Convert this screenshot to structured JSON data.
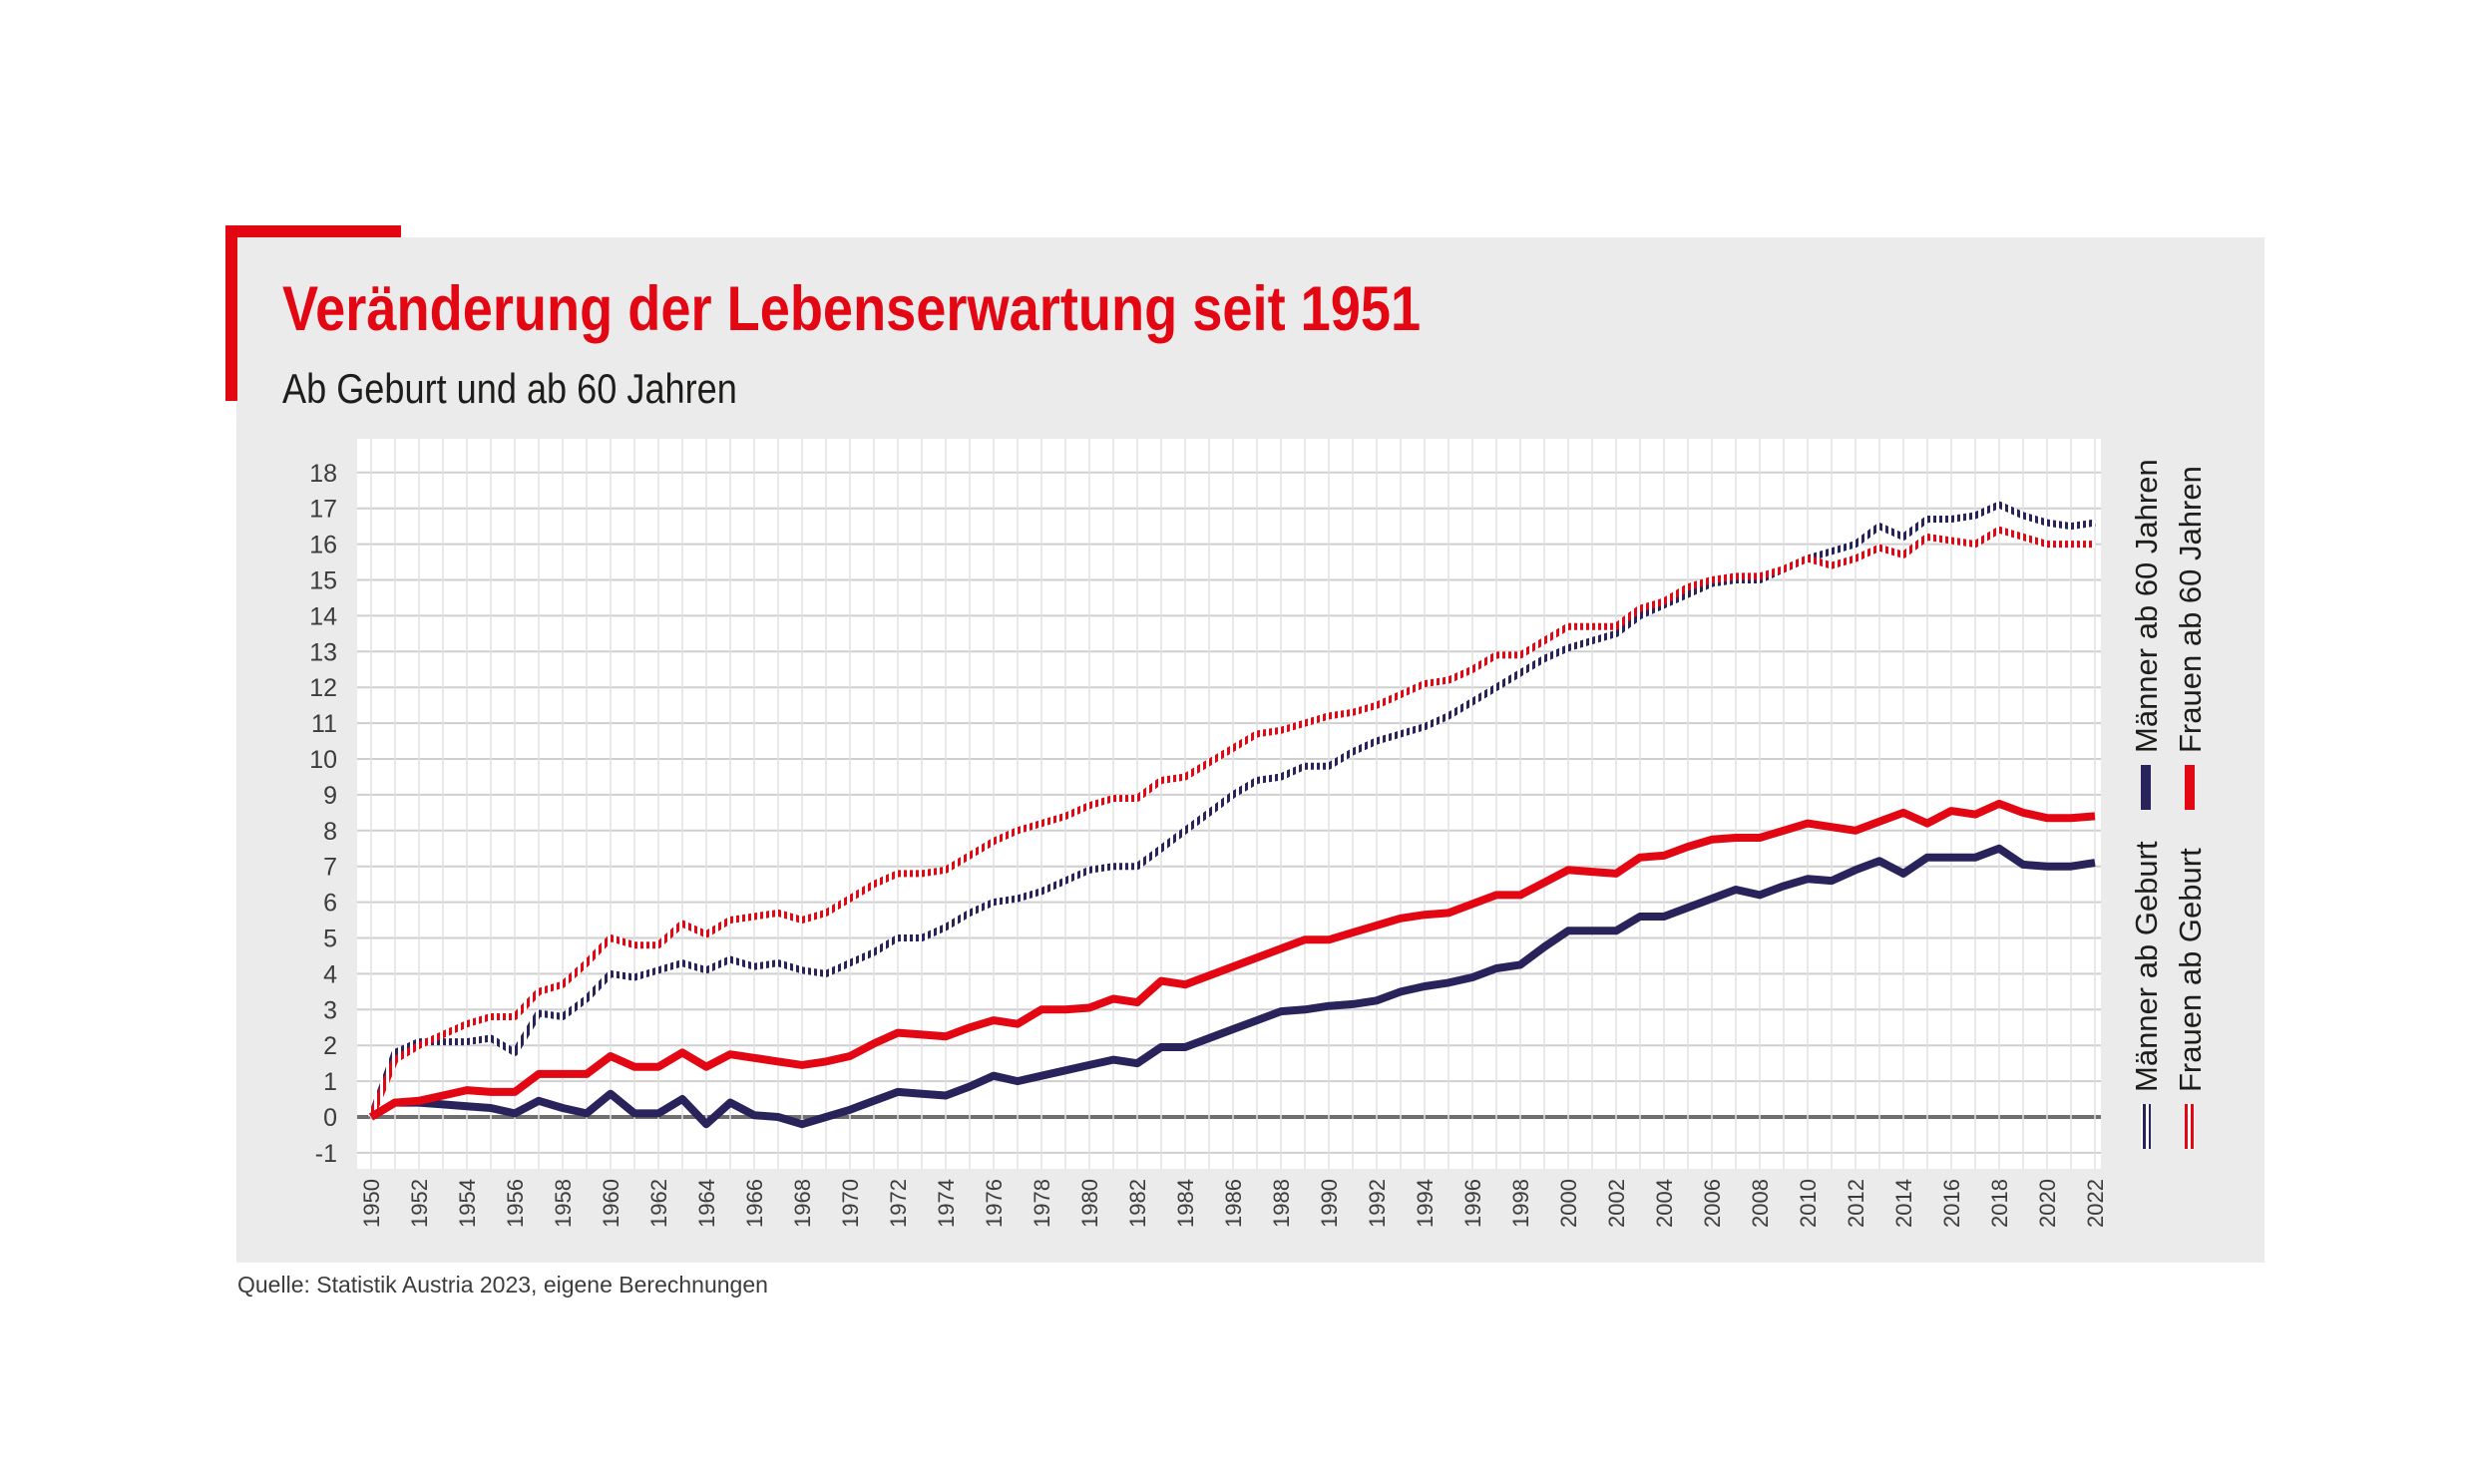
{
  "title": "Veränderung der Lebenserwartung seit 1951",
  "subtitle": "Ab Geburt und ab 60 Jahren",
  "source": "Quelle: Statistik Austria 2023, eigene Berechnungen",
  "colors": {
    "accent": "#e30613",
    "navy": "#29235c",
    "red": "#e30613",
    "panel": "#ebebeb"
  },
  "chart_data": {
    "type": "line",
    "ylim": [
      -1,
      18
    ],
    "y_ticks": [
      "-1",
      "0",
      "1",
      "2",
      "3",
      "4",
      "5",
      "6",
      "7",
      "8",
      "9",
      "10",
      "11",
      "12",
      "13",
      "14",
      "15",
      "16",
      "17",
      "18"
    ],
    "x_ticks": [
      "1950",
      "1952",
      "1954",
      "1956",
      "1958",
      "1960",
      "1962",
      "1964",
      "1966",
      "1968",
      "1970",
      "1972",
      "1974",
      "1976",
      "1978",
      "1980",
      "1982",
      "1984",
      "1986",
      "1988",
      "1990",
      "1992",
      "1994",
      "1996",
      "1998",
      "2000",
      "2002",
      "2004",
      "2006",
      "2008",
      "2010",
      "2012",
      "2014",
      "2016",
      "2018",
      "2020",
      "2022"
    ],
    "xlim": [
      1950,
      2022
    ],
    "grid": true,
    "legend": [
      {
        "name": "Männer ab 60 Jahren",
        "color": "#29235c",
        "style": "solid"
      },
      {
        "name": "Frauen ab 60 Jahren",
        "color": "#e30613",
        "style": "solid"
      },
      {
        "name": "Männer ab Geburt",
        "color": "#29235c",
        "style": "hatched"
      },
      {
        "name": "Frauen ab Geburt",
        "color": "#e30613",
        "style": "hatched"
      }
    ],
    "series": [
      {
        "name": "Männer ab Geburt",
        "color": "#29235c",
        "style": "hatched",
        "x": [
          1950,
          1951,
          1952,
          1953,
          1954,
          1955,
          1956,
          1957,
          1958,
          1959,
          1960,
          1961,
          1962,
          1963,
          1964,
          1965,
          1966,
          1967,
          1968,
          1969,
          1970,
          1971,
          1972,
          1973,
          1974,
          1975,
          1976,
          1977,
          1978,
          1979,
          1980,
          1981,
          1982,
          1983,
          1984,
          1985,
          1986,
          1987,
          1988,
          1989,
          1990,
          1991,
          1992,
          1993,
          1994,
          1995,
          1996,
          1997,
          1998,
          1999,
          2000,
          2001,
          2002,
          2003,
          2004,
          2005,
          2006,
          2007,
          2008,
          2009,
          2010,
          2011,
          2012,
          2013,
          2014,
          2015,
          2016,
          2017,
          2018,
          2019,
          2020,
          2021,
          2022
        ],
        "y": [
          0,
          1.8,
          2.1,
          2.1,
          2.1,
          2.2,
          1.8,
          2.9,
          2.8,
          3.3,
          4.0,
          3.9,
          4.1,
          4.3,
          4.1,
          4.4,
          4.2,
          4.3,
          4.1,
          4.0,
          4.3,
          4.6,
          5.0,
          5.0,
          5.3,
          5.7,
          6.0,
          6.1,
          6.3,
          6.6,
          6.9,
          7.0,
          7.0,
          7.5,
          8.0,
          8.5,
          9.0,
          9.4,
          9.5,
          9.8,
          9.8,
          10.2,
          10.5,
          10.7,
          10.9,
          11.2,
          11.6,
          12.0,
          12.4,
          12.8,
          13.1,
          13.3,
          13.5,
          14.0,
          14.3,
          14.6,
          14.9,
          15.0,
          15.0,
          15.3,
          15.6,
          15.8,
          16.0,
          16.5,
          16.2,
          16.7,
          16.7,
          16.8,
          17.1,
          16.8,
          16.6,
          16.5,
          16.6
        ]
      },
      {
        "name": "Frauen ab Geburt",
        "color": "#e30613",
        "style": "hatched",
        "x": [
          1950,
          1951,
          1952,
          1953,
          1954,
          1955,
          1956,
          1957,
          1958,
          1959,
          1960,
          1961,
          1962,
          1963,
          1964,
          1965,
          1966,
          1967,
          1968,
          1969,
          1970,
          1971,
          1972,
          1973,
          1974,
          1975,
          1976,
          1977,
          1978,
          1979,
          1980,
          1981,
          1982,
          1983,
          1984,
          1985,
          1986,
          1987,
          1988,
          1989,
          1990,
          1991,
          1992,
          1993,
          1994,
          1995,
          1996,
          1997,
          1998,
          1999,
          2000,
          2001,
          2002,
          2003,
          2004,
          2005,
          2006,
          2007,
          2008,
          2009,
          2010,
          2011,
          2012,
          2013,
          2014,
          2015,
          2016,
          2017,
          2018,
          2019,
          2020,
          2021,
          2022
        ],
        "y": [
          0,
          1.6,
          2.0,
          2.3,
          2.6,
          2.8,
          2.8,
          3.5,
          3.7,
          4.3,
          5.0,
          4.8,
          4.8,
          5.4,
          5.1,
          5.5,
          5.6,
          5.7,
          5.5,
          5.7,
          6.1,
          6.5,
          6.8,
          6.8,
          6.9,
          7.3,
          7.7,
          8.0,
          8.2,
          8.4,
          8.7,
          8.9,
          8.9,
          9.4,
          9.5,
          9.9,
          10.3,
          10.7,
          10.8,
          11.0,
          11.2,
          11.3,
          11.5,
          11.8,
          12.1,
          12.2,
          12.5,
          12.9,
          12.9,
          13.3,
          13.7,
          13.7,
          13.7,
          14.2,
          14.4,
          14.8,
          15.0,
          15.1,
          15.1,
          15.3,
          15.6,
          15.4,
          15.6,
          15.9,
          15.7,
          16.2,
          16.1,
          16.0,
          16.4,
          16.2,
          16.0,
          16.0,
          16.0
        ]
      },
      {
        "name": "Männer ab 60 Jahren",
        "color": "#29235c",
        "style": "solid",
        "x": [
          1950,
          1951,
          1952,
          1953,
          1954,
          1955,
          1956,
          1957,
          1958,
          1959,
          1960,
          1961,
          1962,
          1963,
          1964,
          1965,
          1966,
          1967,
          1968,
          1969,
          1970,
          1971,
          1972,
          1973,
          1974,
          1975,
          1976,
          1977,
          1978,
          1979,
          1980,
          1981,
          1982,
          1983,
          1984,
          1985,
          1986,
          1987,
          1988,
          1989,
          1990,
          1991,
          1992,
          1993,
          1994,
          1995,
          1996,
          1997,
          1998,
          1999,
          2000,
          2001,
          2002,
          2003,
          2004,
          2005,
          2006,
          2007,
          2008,
          2009,
          2010,
          2011,
          2012,
          2013,
          2014,
          2015,
          2016,
          2017,
          2018,
          2019,
          2020,
          2021,
          2022
        ],
        "y": [
          0,
          0.4,
          0.4,
          0.35,
          0.3,
          0.25,
          0.1,
          0.45,
          0.25,
          0.1,
          0.65,
          0.1,
          0.1,
          0.5,
          -0.2,
          0.4,
          0.05,
          0.0,
          -0.2,
          0.0,
          0.2,
          0.45,
          0.7,
          0.65,
          0.6,
          0.85,
          1.15,
          1.0,
          1.15,
          1.3,
          1.45,
          1.6,
          1.5,
          1.95,
          1.95,
          2.2,
          2.45,
          2.7,
          2.95,
          3.0,
          3.1,
          3.15,
          3.25,
          3.5,
          3.65,
          3.75,
          3.9,
          4.15,
          4.25,
          4.75,
          5.2,
          5.2,
          5.2,
          5.6,
          5.6,
          5.85,
          6.1,
          6.35,
          6.2,
          6.45,
          6.65,
          6.6,
          6.9,
          7.15,
          6.8,
          7.25,
          7.25,
          7.25,
          7.5,
          7.05,
          7.0,
          7.0,
          7.1
        ]
      },
      {
        "name": "Frauen ab 60 Jahren",
        "color": "#e30613",
        "style": "solid",
        "x": [
          1950,
          1951,
          1952,
          1953,
          1954,
          1955,
          1956,
          1957,
          1958,
          1959,
          1960,
          1961,
          1962,
          1963,
          1964,
          1965,
          1966,
          1967,
          1968,
          1969,
          1970,
          1971,
          1972,
          1973,
          1974,
          1975,
          1976,
          1977,
          1978,
          1979,
          1980,
          1981,
          1982,
          1983,
          1984,
          1985,
          1986,
          1987,
          1988,
          1989,
          1990,
          1991,
          1992,
          1993,
          1994,
          1995,
          1996,
          1997,
          1998,
          1999,
          2000,
          2001,
          2002,
          2003,
          2004,
          2005,
          2006,
          2007,
          2008,
          2009,
          2010,
          2011,
          2012,
          2013,
          2014,
          2015,
          2016,
          2017,
          2018,
          2019,
          2020,
          2021,
          2022
        ],
        "y": [
          0,
          0.4,
          0.45,
          0.6,
          0.75,
          0.7,
          0.7,
          1.2,
          1.2,
          1.2,
          1.7,
          1.4,
          1.4,
          1.8,
          1.4,
          1.75,
          1.65,
          1.55,
          1.45,
          1.55,
          1.7,
          2.05,
          2.35,
          2.3,
          2.25,
          2.5,
          2.7,
          2.6,
          3.0,
          3.0,
          3.05,
          3.3,
          3.2,
          3.8,
          3.7,
          3.95,
          4.2,
          4.45,
          4.7,
          4.95,
          4.95,
          5.15,
          5.35,
          5.55,
          5.65,
          5.7,
          5.95,
          6.2,
          6.2,
          6.55,
          6.9,
          6.85,
          6.8,
          7.25,
          7.3,
          7.55,
          7.75,
          7.8,
          7.8,
          8.0,
          8.2,
          8.1,
          8.0,
          8.25,
          8.5,
          8.2,
          8.55,
          8.45,
          8.75,
          8.5,
          8.35,
          8.35,
          8.4
        ]
      }
    ]
  }
}
